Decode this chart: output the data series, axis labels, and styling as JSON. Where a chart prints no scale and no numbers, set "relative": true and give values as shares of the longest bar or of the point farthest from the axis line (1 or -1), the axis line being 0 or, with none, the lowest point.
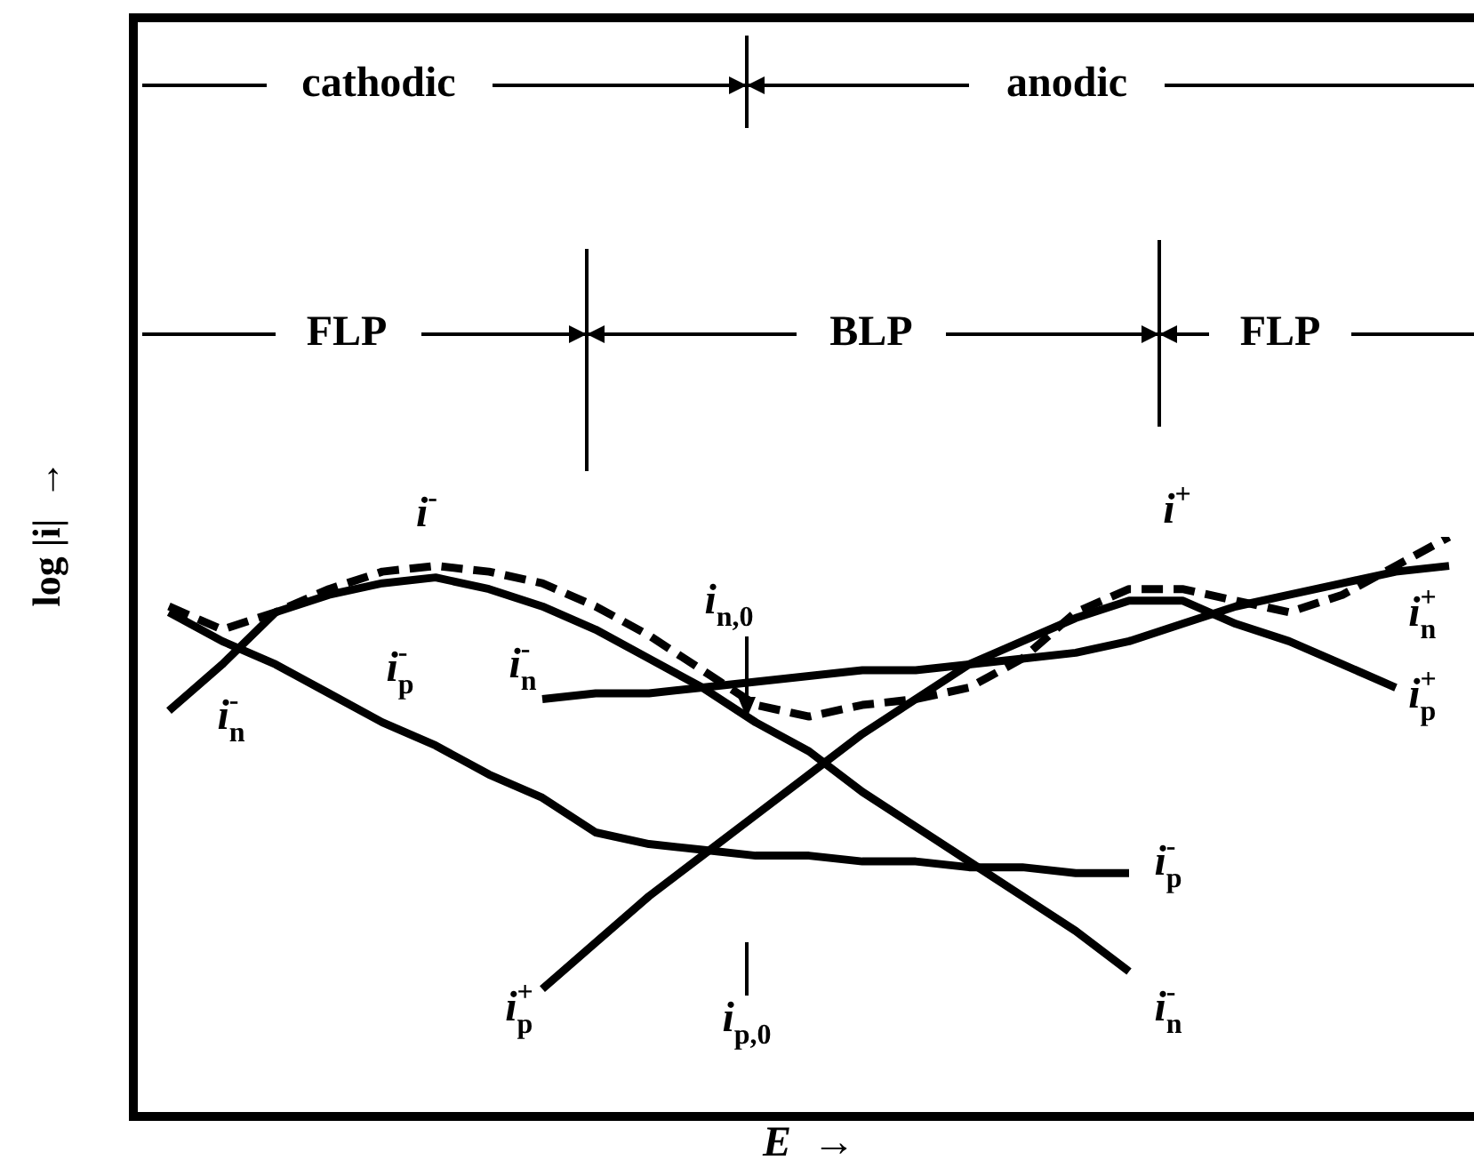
{
  "chart_data": {
    "type": "line",
    "relative": true,
    "xlabel": "E  →",
    "ylabel": "log |i|  →",
    "categories": [
      null,
      null,
      null,
      null,
      null,
      null,
      null,
      null,
      null,
      null,
      null,
      null,
      null,
      null,
      null,
      null,
      null,
      null,
      null,
      null,
      null,
      null,
      null,
      null,
      null
    ],
    "series": [
      {
        "color": "#000000",
        "line_style": "solid",
        "values": [
          0.87,
          0.82,
          0.78,
          0.73,
          0.68,
          0.64,
          0.59,
          0.55,
          0.49,
          0.47,
          0.46,
          0.45,
          0.45,
          0.44,
          0.44,
          0.43,
          0.43,
          0.42,
          0.42,
          null,
          null,
          null,
          null,
          null,
          null
        ]
      },
      {
        "color": "#000000",
        "line_style": "solid",
        "values": [
          0.7,
          0.78,
          0.87,
          0.9,
          0.92,
          0.93,
          0.91,
          0.88,
          0.84,
          0.79,
          0.74,
          0.68,
          0.63,
          0.56,
          0.5,
          0.44,
          0.38,
          0.32,
          0.25,
          null,
          null,
          null,
          null,
          null,
          null
        ]
      },
      {
        "color": "#000000",
        "line_style": "solid",
        "values": [
          null,
          null,
          null,
          null,
          null,
          null,
          null,
          0.72,
          0.73,
          0.73,
          0.74,
          0.75,
          0.76,
          0.77,
          0.77,
          0.78,
          0.79,
          0.8,
          0.82,
          0.85,
          0.88,
          0.9,
          0.92,
          0.94,
          0.95
        ]
      },
      {
        "color": "#000000",
        "line_style": "solid",
        "values": [
          null,
          null,
          null,
          null,
          null,
          null,
          null,
          0.22,
          0.3,
          0.38,
          0.45,
          0.52,
          0.59,
          0.66,
          0.72,
          0.78,
          0.82,
          0.86,
          0.89,
          0.89,
          0.85,
          0.82,
          0.78,
          0.74,
          null
        ]
      },
      {
        "color": "#000000",
        "line_style": "dashed",
        "values": [
          0.88,
          0.84,
          0.87,
          0.91,
          0.94,
          0.95,
          0.94,
          0.92,
          0.88,
          0.83,
          0.77,
          0.71,
          0.69,
          0.71,
          0.72,
          0.74,
          0.79,
          0.87,
          0.91,
          0.91,
          0.89,
          0.87,
          0.9,
          0.95,
          1
        ]
      }
    ],
    "marker": "none",
    "annotations": [
      "cathodic",
      "anodic",
      "FLP",
      "BLP",
      "FLP",
      "i$^{-}$",
      "i$^{+}$",
      "i$_{n,0}$",
      "i$^{-}$$_{p}$",
      "i$^{-}$$_{n}$",
      "i$^{-}$$_{n}$",
      "i$^{-}$$_{p}$",
      "i$^{+}$$_{p}$",
      "i$_{p,0}$",
      "i$^{-}$$_{n}$",
      "i$^{+}$$_{n}$",
      "i$^{+}$$_{p}$"
    ]
  }
}
